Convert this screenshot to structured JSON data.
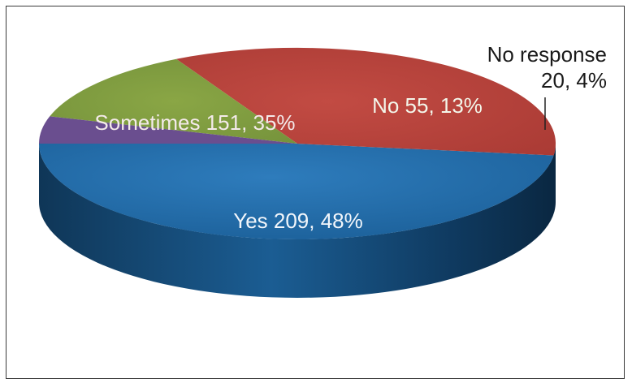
{
  "chart_data": {
    "type": "pie",
    "title": "",
    "slices": [
      {
        "label": "Yes",
        "value": 209,
        "percent": 48,
        "color": "#1f6aa8",
        "text": "Yes 209, 48%"
      },
      {
        "label": "Sometimes",
        "value": 151,
        "percent": 35,
        "color": "#b8433c",
        "text": "Sometimes 151, 35%"
      },
      {
        "label": "No",
        "value": 55,
        "percent": 13,
        "color": "#7f9a3e",
        "text": "No 55, 13%"
      },
      {
        "label": "No response",
        "value": 20,
        "percent": 4,
        "color": "#6a4e8f",
        "text_line1": "No response",
        "text_line2": "20, 4%"
      }
    ],
    "style": "3d-pie",
    "legend": "none"
  }
}
